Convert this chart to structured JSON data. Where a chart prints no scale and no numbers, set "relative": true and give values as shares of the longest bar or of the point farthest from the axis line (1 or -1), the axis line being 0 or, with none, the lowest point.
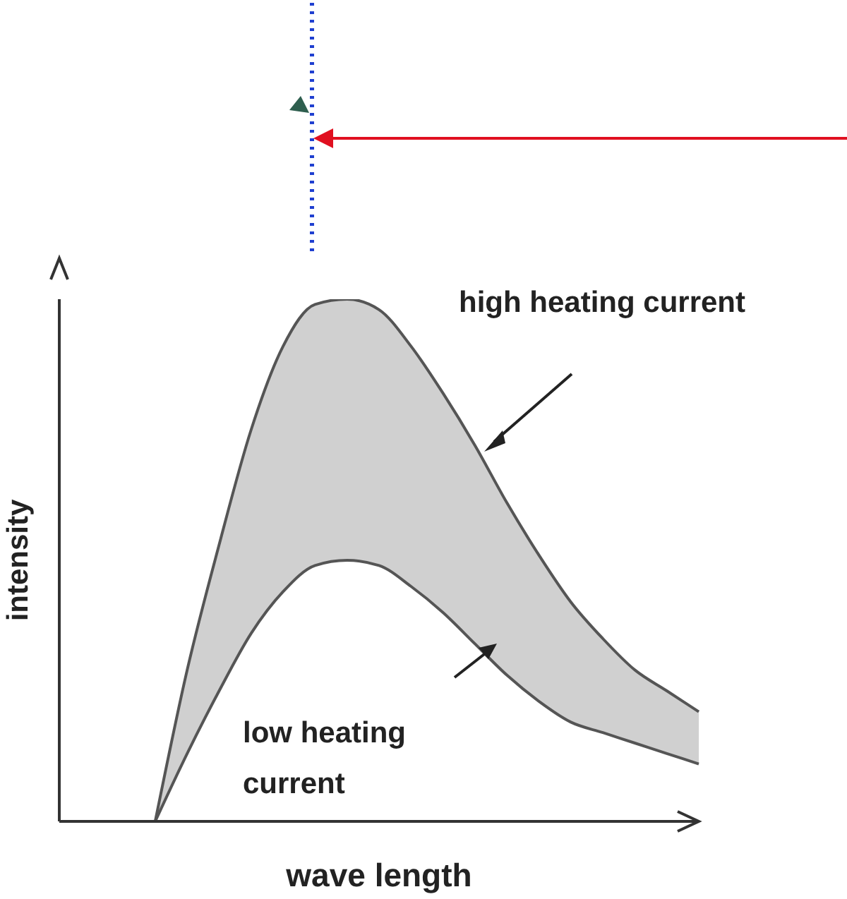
{
  "chart_data": {
    "type": "line",
    "relative": true,
    "xlabel": "wave length",
    "ylabel": "intensity",
    "marker": "none",
    "categories": [
      null,
      null,
      null,
      null,
      null,
      null,
      null,
      null,
      null,
      null,
      null,
      null,
      null,
      null,
      null,
      null,
      null,
      null,
      null,
      null,
      null
    ],
    "series": [
      {
        "name": "high heating current",
        "type": "area",
        "color": "#555555",
        "values": [
          null,
          null,
          null,
          0,
          0.29,
          0.53,
          0.75,
          0.91,
          0.99,
          1.0,
          0.98,
          0.91,
          0.82,
          0.72,
          0.61,
          0.51,
          0.42,
          0.35,
          0.29,
          0.25,
          0.21
        ]
      },
      {
        "name": "low heating current",
        "color": "#555555",
        "values": [
          null,
          null,
          null,
          0,
          0.13,
          0.25,
          0.36,
          0.44,
          0.49,
          0.5,
          0.49,
          0.45,
          0.4,
          0.34,
          0.28,
          0.23,
          0.19,
          0.17,
          0.15,
          0.13,
          0.11
        ]
      }
    ]
  }
}
